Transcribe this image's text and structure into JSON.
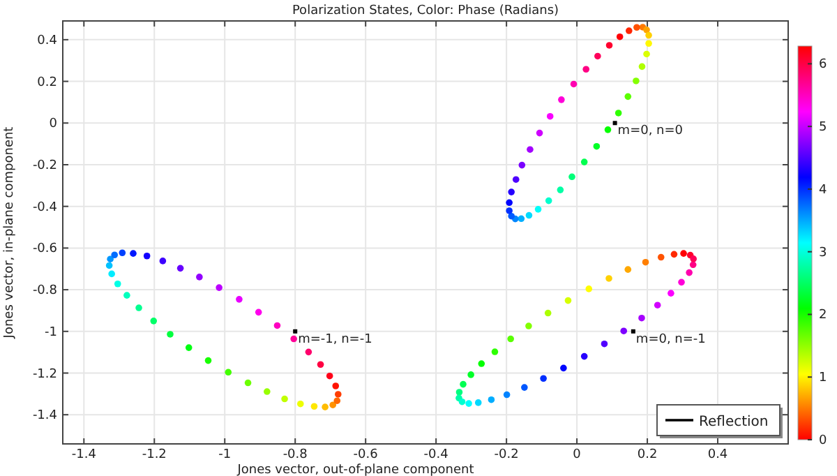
{
  "chart_data": {
    "type": "scatter",
    "title": "Polarization States, Color: Phase (Radians)",
    "xlabel": "Jones vector, out-of-plane component",
    "ylabel": "Jones vector, in-plane component",
    "xlim": [
      -1.46,
      0.6
    ],
    "ylim": [
      -1.54,
      0.49
    ],
    "xticks": [
      -1.4,
      -1.2,
      -1,
      -0.8,
      -0.6,
      -0.4,
      -0.2,
      0,
      0.2,
      0.4
    ],
    "yticks": [
      -1.4,
      -1.2,
      -1,
      -0.8,
      -0.6,
      -0.4,
      -0.2,
      0,
      0.2,
      0.4
    ],
    "grid": true,
    "legend": "bottom right",
    "marker": "circle",
    "clim": [
      0,
      6.283
    ],
    "cticks": [
      0,
      1,
      2,
      3,
      4,
      5,
      6
    ],
    "series": [
      {
        "name": "Reflection",
        "x": [
          0.187,
          0.198,
          0.204,
          0.204,
          0.198,
          0.185,
          0.168,
          0.145,
          0.118,
          0.088,
          0.056,
          0.021,
          -0.014,
          -0.047,
          -0.08,
          -0.11,
          -0.136,
          -0.158,
          -0.175,
          -0.186,
          -0.192,
          -0.192,
          -0.186,
          -0.173,
          -0.156,
          -0.133,
          -0.106,
          -0.076,
          -0.044,
          -0.009,
          0.026,
          0.059,
          0.092,
          0.122,
          0.148,
          0.17,
          -0.693,
          -0.715,
          -0.746,
          -0.785,
          -0.83,
          -0.88,
          -0.934,
          -0.99,
          -1.047,
          -1.102,
          -1.155,
          -1.202,
          -1.244,
          -1.278,
          -1.304,
          -1.321,
          -1.328,
          -1.325,
          -1.313,
          -1.291,
          -1.26,
          -1.221,
          -1.176,
          -1.126,
          -1.072,
          -1.016,
          -0.959,
          -0.904,
          -0.851,
          -0.804,
          -0.762,
          -0.728,
          -0.702,
          -0.685,
          -0.678,
          -0.681,
          0.322,
          0.303,
          0.276,
          0.239,
          0.195,
          0.145,
          0.091,
          0.034,
          -0.025,
          -0.082,
          -0.137,
          -0.188,
          -0.233,
          -0.271,
          -0.301,
          -0.323,
          -0.334,
          -0.335,
          -0.326,
          -0.307,
          -0.28,
          -0.243,
          -0.199,
          -0.149,
          -0.095,
          -0.038,
          0.021,
          0.078,
          0.133,
          0.184,
          0.229,
          0.267,
          0.297,
          0.319,
          0.33,
          0.331
        ],
        "values": [
          0.46,
          0.447,
          0.421,
          0.382,
          0.331,
          0.271,
          0.202,
          0.127,
          0.048,
          -0.032,
          -0.112,
          -0.187,
          -0.258,
          -0.321,
          -0.373,
          -0.414,
          -0.443,
          -0.459,
          -0.46,
          -0.447,
          -0.421,
          -0.382,
          -0.331,
          -0.271,
          -0.202,
          -0.127,
          -0.048,
          0.032,
          0.112,
          0.187,
          0.258,
          0.321,
          0.373,
          0.414,
          0.443,
          0.459,
          -1.353,
          -1.363,
          -1.36,
          -1.348,
          -1.324,
          -1.289,
          -1.247,
          -1.196,
          -1.14,
          -1.078,
          -1.014,
          -0.95,
          -0.887,
          -0.827,
          -0.772,
          -0.724,
          -0.684,
          -0.653,
          -0.633,
          -0.623,
          -0.626,
          -0.638,
          -0.662,
          -0.697,
          -0.739,
          -0.79,
          -0.846,
          -0.908,
          -0.972,
          -1.036,
          -1.099,
          -1.159,
          -1.214,
          -1.262,
          -1.302,
          -1.333,
          -0.634,
          -0.626,
          -0.63,
          -0.644,
          -0.668,
          -0.703,
          -0.746,
          -0.796,
          -0.852,
          -0.912,
          -0.974,
          -1.036,
          -1.098,
          -1.155,
          -1.208,
          -1.254,
          -1.292,
          -1.32,
          -1.338,
          -1.346,
          -1.342,
          -1.328,
          -1.304,
          -1.269,
          -1.226,
          -1.176,
          -1.12,
          -1.06,
          -0.998,
          -0.936,
          -0.874,
          -0.817,
          -0.764,
          -0.718,
          -0.68,
          -0.652
        ],
        "cvalues": [
          0.5,
          0.67,
          0.85,
          1.02,
          1.2,
          1.37,
          1.55,
          1.72,
          1.9,
          2.07,
          2.25,
          2.42,
          2.59,
          2.77,
          2.94,
          3.12,
          3.29,
          3.47,
          3.64,
          3.82,
          3.99,
          4.17,
          4.34,
          4.51,
          4.69,
          4.86,
          5.04,
          5.21,
          5.39,
          5.56,
          5.74,
          5.91,
          6.09,
          6.26,
          0.15,
          0.33,
          0.6,
          0.77,
          0.95,
          1.12,
          1.3,
          1.47,
          1.65,
          1.82,
          2.0,
          2.17,
          2.35,
          2.52,
          2.69,
          2.87,
          3.04,
          3.22,
          3.39,
          3.57,
          3.74,
          3.92,
          4.09,
          4.26,
          4.44,
          4.61,
          4.79,
          4.96,
          5.14,
          5.31,
          5.49,
          5.66,
          5.84,
          6.01,
          6.18,
          0.08,
          0.25,
          0.43,
          6.1,
          6.27,
          0.17,
          0.34,
          0.52,
          0.69,
          0.86,
          1.04,
          1.21,
          1.39,
          1.56,
          1.73,
          1.91,
          2.08,
          2.26,
          2.43,
          2.61,
          2.78,
          2.95,
          3.13,
          3.3,
          3.48,
          3.65,
          3.83,
          4.0,
          4.17,
          4.35,
          4.52,
          4.7,
          4.87,
          5.05,
          5.22,
          5.39,
          5.57,
          5.74,
          5.92
        ]
      }
    ],
    "annotations": [
      {
        "text": "m=0, n=0",
        "x": 0.108,
        "y": 0.0
      },
      {
        "text": "m=-1, n=-1",
        "x": -0.8,
        "y": -1.0
      },
      {
        "text": "m=0, n=-1",
        "x": 0.16,
        "y": -1.0
      }
    ]
  }
}
